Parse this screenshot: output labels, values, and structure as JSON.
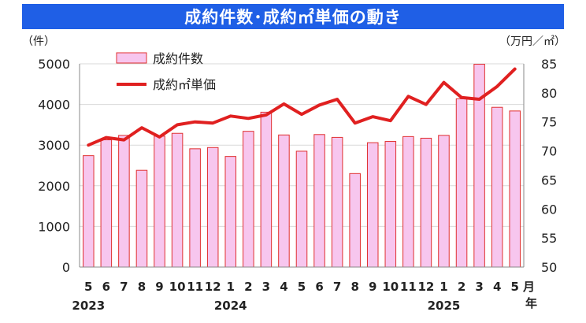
{
  "chart_data": {
    "type": "bar+line",
    "title": "成約件数･成約㎡単価の動き",
    "y_left_unit": "（件）",
    "y_right_unit": "（万円／㎡）",
    "y_left_lim": [
      0,
      5000
    ],
    "y_left_ticks": [
      "0",
      "1000",
      "2000",
      "3000",
      "4000",
      "5000"
    ],
    "y_right_lim": [
      50,
      85
    ],
    "y_right_ticks": [
      "50",
      "55",
      "60",
      "65",
      "70",
      "75",
      "80",
      "85"
    ],
    "categories": [
      "5",
      "6",
      "7",
      "8",
      "9",
      "10",
      "11",
      "12",
      "1",
      "2",
      "3",
      "4",
      "5",
      "6",
      "7",
      "8",
      "9",
      "10",
      "11",
      "12",
      "1",
      "2",
      "3",
      "4",
      "5"
    ],
    "x_unit": "月",
    "year_unit": "年",
    "year_labels": [
      {
        "label": "2023",
        "index": 0
      },
      {
        "label": "2024",
        "index": 8
      },
      {
        "label": "2025",
        "index": 20
      }
    ],
    "series": [
      {
        "name": "成約件数",
        "type": "bar",
        "axis": "left",
        "values": [
          2740,
          3130,
          3240,
          2380,
          3220,
          3290,
          2910,
          2940,
          2720,
          3340,
          3810,
          3250,
          2850,
          3260,
          3190,
          2300,
          3060,
          3090,
          3210,
          3170,
          3240,
          4140,
          4990,
          3930,
          3840
        ]
      },
      {
        "name": "成約㎡単価",
        "type": "line",
        "axis": "right",
        "values": [
          71.0,
          72.3,
          71.9,
          74.0,
          72.4,
          74.5,
          75.0,
          74.8,
          76.0,
          75.6,
          76.2,
          78.1,
          76.3,
          77.9,
          78.9,
          74.8,
          75.9,
          75.2,
          79.4,
          78.0,
          81.8,
          79.2,
          78.9,
          81.1,
          84.1
        ]
      }
    ],
    "legend_position": "top-left",
    "colors": {
      "bar_fill": "#f7c6ee",
      "bar_stroke": "#e03030",
      "line": "#e02020",
      "title_bg": "#1f5fe6",
      "title_text": "#ffffff"
    }
  }
}
